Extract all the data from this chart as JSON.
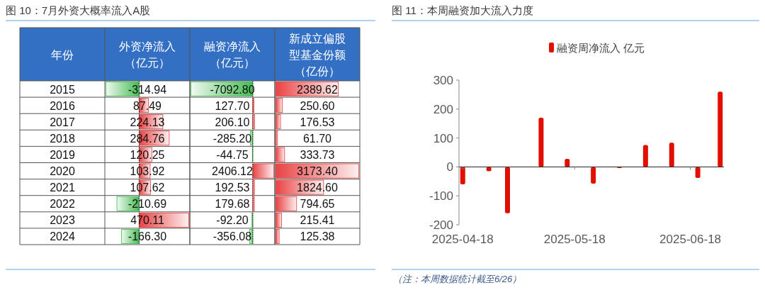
{
  "chart_data": [
    {
      "type": "bar",
      "orientation": "horizontal",
      "title": "图 10：7月外资大概率流入A股",
      "ylabel": "年份",
      "tick_labels": "y",
      "categories": [
        "2015",
        "2016",
        "2017",
        "2018",
        "2019",
        "2020",
        "2021",
        "2022",
        "2023",
        "2024"
      ],
      "series": [
        {
          "name": "外资净流入（亿元）",
          "values": [
            -314.94,
            87.49,
            224.13,
            284.76,
            120.25,
            103.92,
            107.62,
            -210.69,
            470.11,
            -166.3
          ],
          "value_labels": [
            "-314.94",
            "87.49",
            "224.13",
            "284.76",
            "120.25",
            "103.92",
            "107.62",
            "-210.69",
            "470.11",
            "-166.30"
          ],
          "colors": [
            "#3cb84a",
            "#e8393a",
            "#e8393a",
            "#e8393a",
            "#e8393a",
            "#e8393a",
            "#e8393a",
            "#3cb84a",
            "#e8393a",
            "#3cb84a"
          ]
        }
      ]
    },
    {
      "type": "bar",
      "orientation": "horizontal",
      "tick_labels": false,
      "categories": [
        "2015",
        "2016",
        "2017",
        "2018",
        "2019",
        "2020",
        "2021",
        "2022",
        "2023",
        "2024"
      ],
      "series": [
        {
          "name": "融资净流入（亿元）",
          "values": [
            -7092.8,
            127.7,
            206.1,
            -285.2,
            -44.75,
            2406.12,
            192.53,
            179.68,
            -92.2,
            -356.08
          ],
          "value_labels": [
            "-7092.80",
            "127.70",
            "206.10",
            "-285.20",
            "-44.75",
            "2406.12",
            "192.53",
            "179.68",
            "-92.20",
            "-356.08"
          ],
          "colors": [
            "#3cb84a",
            "#e8393a",
            "#e8393a",
            "#3cb84a",
            "#3cb84a",
            "#e8393a",
            "#e8393a",
            "#e8393a",
            "#3cb84a",
            "#3cb84a"
          ]
        }
      ]
    },
    {
      "type": "bar",
      "orientation": "horizontal",
      "tick_labels": false,
      "categories": [
        "2015",
        "2016",
        "2017",
        "2018",
        "2019",
        "2020",
        "2021",
        "2022",
        "2023",
        "2024"
      ],
      "series": [
        {
          "name": "新成立偏股型基金份额（亿份）",
          "values": [
            2389.62,
            250.6,
            176.53,
            61.7,
            333.73,
            3173.4,
            1824.6,
            794.65,
            215.41,
            125.38
          ],
          "value_labels": [
            "2389.62",
            "250.60",
            "176.53",
            "61.70",
            "333.73",
            "3173.40",
            "1824.60",
            "794.65",
            "215.41",
            "125.38"
          ],
          "colors": [
            "#e8393a",
            "#e8393a",
            "#e8393a",
            "#e8393a",
            "#e8393a",
            "#e8393a",
            "#e8393a",
            "#e8393a",
            "#e8393a",
            "#e8393a"
          ]
        }
      ]
    },
    {
      "type": "bar",
      "title": "图 11：本周融资加大流入力度",
      "x": [
        "2025-04-18",
        "2025-04-25",
        "2025-04-30",
        "2025-05-09",
        "2025-05-16",
        "2025-05-23",
        "2025-05-30",
        "2025-06-06",
        "2025-06-13",
        "2025-06-20",
        "2025-06-26"
      ],
      "series": [
        {
          "name": "融资周净流入 亿元",
          "color": "#e00f00",
          "values": [
            -60,
            -15,
            -160,
            170,
            28,
            -58,
            -4,
            76,
            84,
            -38,
            260
          ]
        }
      ],
      "xlim": [
        "2025-04-17",
        "2025-06-27"
      ],
      "xticks": [
        "2025-04-18",
        "2025-05-18",
        "2025-06-18"
      ],
      "ylim": [
        -200,
        300
      ],
      "yticks": [
        -200,
        -100,
        0,
        100,
        200,
        300
      ],
      "legend": "top",
      "annotations": [
        "（注：本周数据统计截至6/26）"
      ]
    }
  ]
}
